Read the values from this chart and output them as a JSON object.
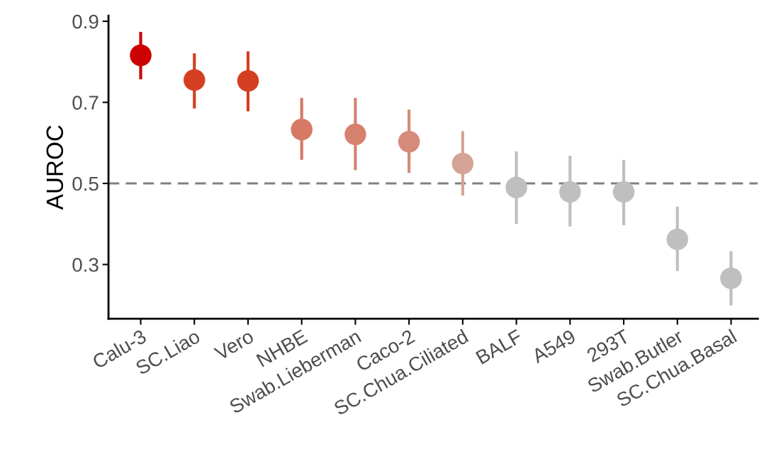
{
  "chart_data": {
    "type": "scatter",
    "ylabel": "AUROC",
    "categories": [
      "Calu-3",
      "SC.Liao",
      "Vero",
      "NHBE",
      "Swab.Lieberman",
      "Caco-2",
      "SC.Chua.Ciliated",
      "BALF",
      "A549",
      "293T",
      "Swab.Butler",
      "SC.Chua.Basal"
    ],
    "values": [
      0.816,
      0.755,
      0.753,
      0.633,
      0.621,
      0.603,
      0.549,
      0.49,
      0.479,
      0.479,
      0.362,
      0.266
    ],
    "errors": [
      [
        0.757,
        0.874
      ],
      [
        0.685,
        0.821
      ],
      [
        0.678,
        0.826
      ],
      [
        0.558,
        0.711
      ],
      [
        0.533,
        0.711
      ],
      [
        0.526,
        0.682
      ],
      [
        0.47,
        0.629
      ],
      [
        0.4,
        0.579
      ],
      [
        0.394,
        0.568
      ],
      [
        0.397,
        0.558
      ],
      [
        0.284,
        0.443
      ],
      [
        0.199,
        0.333
      ]
    ],
    "colors": [
      "#cc0000",
      "#d43f22",
      "#d43f22",
      "#d67a66",
      "#d6806e",
      "#d68a7a",
      "#d6a497",
      "#bfbfbf",
      "#bfbfbf",
      "#bfbfbf",
      "#bfbfbf",
      "#bfbfbf"
    ],
    "ylim": [
      0.166,
      0.914
    ],
    "yticks": [
      0.3,
      0.5,
      0.7,
      0.9
    ],
    "ref_lines": [
      {
        "axis": "y",
        "value": 0.5,
        "color": "#808080",
        "line_style": "dashed"
      }
    ],
    "marker": "circle",
    "grid": false
  }
}
